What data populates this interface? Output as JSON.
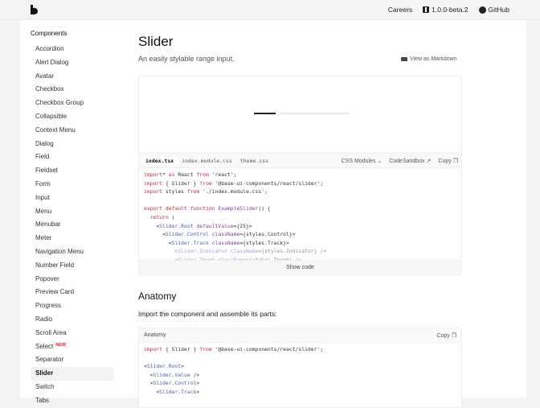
{
  "header": {
    "careers": "Careers",
    "version": "1.0.0-beta.2",
    "github": "GitHub"
  },
  "sidebar": {
    "heading": "Components",
    "items": [
      "Accordion",
      "Alert Dialog",
      "Avatar",
      "Checkbox",
      "Checkbox Group",
      "Collapsible",
      "Context Menu",
      "Dialog",
      "Field",
      "Fieldset",
      "Form",
      "Input",
      "Menu",
      "Menubar",
      "Meter",
      "Navigation Menu",
      "Number Field",
      "Popover",
      "Preview Card",
      "Progress",
      "Radio",
      "Scroll Area",
      "Select",
      "Separator",
      "Slider",
      "Switch",
      "Tabs"
    ],
    "active": "Slider",
    "badge_item": "Select",
    "badge": "NEW"
  },
  "page": {
    "title": "Slider",
    "subtitle": "An easily stylable range input.",
    "markdown": "View as Markdown"
  },
  "demo": {
    "slider_value": 25,
    "slider_max": 100,
    "tabs": [
      "index.tsx",
      "index.module.css",
      "theme.css"
    ],
    "active_tab": "index.tsx",
    "css_select": "CSS Modules",
    "sandbox": "CodeSandbox",
    "copy": "Copy",
    "show_code": "Show code",
    "code": [
      [
        [
          "k",
          "import"
        ],
        [
          "",
          "* "
        ],
        [
          "k",
          "as"
        ],
        [
          "",
          " React "
        ],
        [
          "k",
          "from"
        ],
        [
          "",
          " 'react';"
        ]
      ],
      [
        [
          "k",
          "import"
        ],
        [
          "",
          " { Slider } "
        ],
        [
          "k",
          "from"
        ],
        [
          "",
          " '@base-ui-components/react/slider';"
        ]
      ],
      [
        [
          "k",
          "import"
        ],
        [
          "",
          " styles "
        ],
        [
          "k",
          "from"
        ],
        [
          "",
          " './index.module.css';"
        ]
      ],
      [],
      [
        [
          "k",
          "export default function"
        ],
        [
          "",
          " "
        ],
        [
          "f",
          "ExampleSlider"
        ],
        [
          "",
          "() {"
        ]
      ],
      [
        [
          "",
          "  "
        ],
        [
          "k",
          "return"
        ],
        [
          "",
          " ("
        ]
      ],
      [
        [
          "",
          "    <"
        ],
        [
          "c",
          "Slider.Root"
        ],
        [
          "",
          " "
        ],
        [
          "a",
          "defaultValue"
        ],
        [
          "",
          "={25}>"
        ]
      ],
      [
        [
          "",
          "      <"
        ],
        [
          "c",
          "Slider.Control"
        ],
        [
          "",
          " "
        ],
        [
          "a",
          "className"
        ],
        [
          "",
          "={styles.Control}>"
        ]
      ],
      [
        [
          "",
          "        <"
        ],
        [
          "c",
          "Slider.Track"
        ],
        [
          "",
          " "
        ],
        [
          "a",
          "className"
        ],
        [
          "",
          "={styles.Track}>"
        ]
      ],
      [
        [
          "",
          "          <"
        ],
        [
          "c",
          "Slider.Indicator"
        ],
        [
          "",
          " "
        ],
        [
          "a",
          "className"
        ],
        [
          "",
          "={styles.Indicator} />"
        ]
      ],
      [
        [
          "",
          "          <"
        ],
        [
          "c",
          "Slider.Thumb"
        ],
        [
          "",
          " "
        ],
        [
          "a",
          "className"
        ],
        [
          "",
          "={styles.Thumb} />"
        ]
      ]
    ]
  },
  "anatomy": {
    "heading": "Anatomy",
    "text": "Import the component and assemble its parts:",
    "label": "Anatomy",
    "copy": "Copy",
    "code": [
      [
        [
          "k",
          "import"
        ],
        [
          "",
          " { Slider } "
        ],
        [
          "k",
          "from"
        ],
        [
          "",
          " '@base-ui-components/react/slider';"
        ]
      ],
      [],
      [
        [
          "",
          "<"
        ],
        [
          "c",
          "Slider.Root"
        ],
        [
          "",
          ">"
        ]
      ],
      [
        [
          "",
          "  <"
        ],
        [
          "c",
          "Slider.Value"
        ],
        [
          "",
          " />"
        ]
      ],
      [
        [
          "",
          "  <"
        ],
        [
          "c",
          "Slider.Control"
        ],
        [
          "",
          ">"
        ]
      ],
      [
        [
          "",
          "    <"
        ],
        [
          "c",
          "Slider.Track"
        ],
        [
          "",
          ">"
        ]
      ]
    ]
  }
}
